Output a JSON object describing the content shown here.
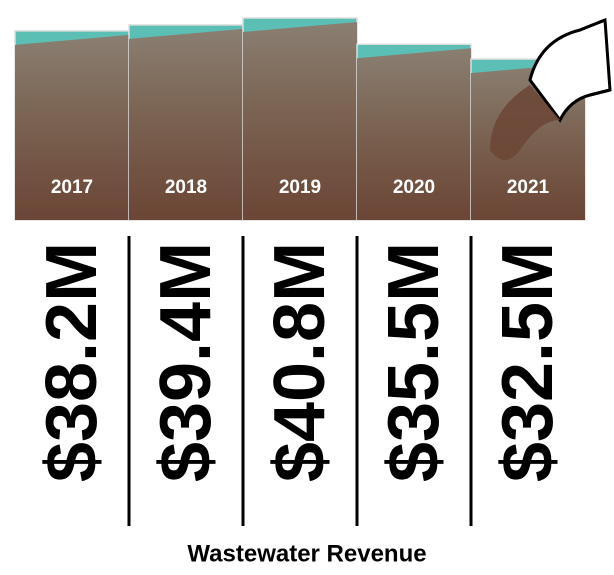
{
  "chart_data": {
    "type": "bar",
    "title": "Wastewater Revenue",
    "categories": [
      "2017",
      "2018",
      "2019",
      "2020",
      "2021"
    ],
    "values": [
      38.2,
      39.4,
      40.8,
      35.5,
      32.5
    ],
    "value_labels": [
      "$38.2M",
      "$39.4M",
      "$40.8M",
      "$35.5M",
      "$32.5M"
    ],
    "color": "#5bbfb5"
  }
}
